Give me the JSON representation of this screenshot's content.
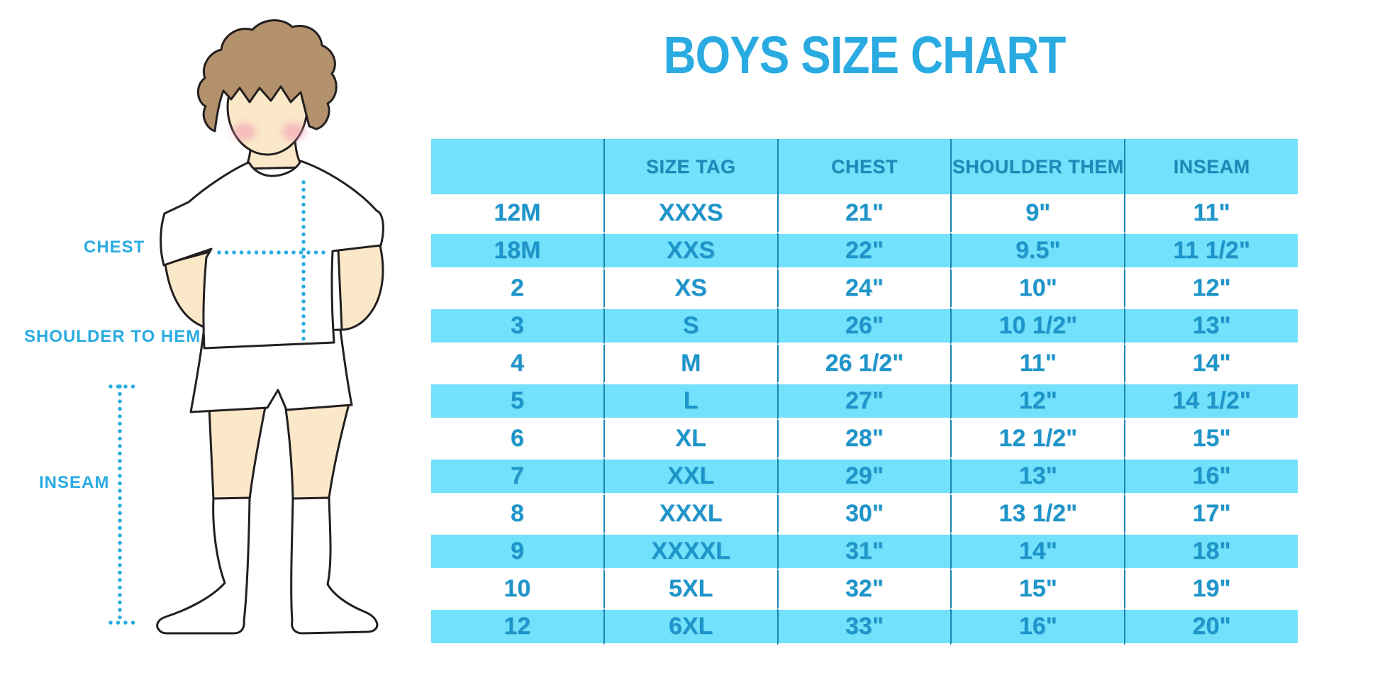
{
  "title": "BOYS SIZE CHART",
  "figure": {
    "chest_label": "CHEST",
    "shoulder_to_hem_label": "SHOULDER TO HEM",
    "inseam_label": "INSEAM"
  },
  "table": {
    "headers": [
      "",
      "SIZE TAG",
      "CHEST",
      "SHOULDER THEM",
      "INSEAM"
    ],
    "rows": [
      [
        "12M",
        "XXXS",
        "21\"",
        "9\"",
        "11\""
      ],
      [
        "18M",
        "XXS",
        "22\"",
        "9.5\"",
        "11 1/2\""
      ],
      [
        "2",
        "XS",
        "24\"",
        "10\"",
        "12\""
      ],
      [
        "3",
        "S",
        "26\"",
        "10 1/2\"",
        "13\""
      ],
      [
        "4",
        "M",
        "26 1/2\"",
        "11\"",
        "14\""
      ],
      [
        "5",
        "L",
        "27\"",
        "12\"",
        "14 1/2\""
      ],
      [
        "6",
        "XL",
        "28\"",
        "12 1/2\"",
        "15\""
      ],
      [
        "7",
        "XXL",
        "29\"",
        "13\"",
        "16\""
      ],
      [
        "8",
        "XXXL",
        "30\"",
        "13 1/2\"",
        "17\""
      ],
      [
        "9",
        "XXXXL",
        "31\"",
        "14\"",
        "18\""
      ],
      [
        "10",
        "5XL",
        "32\"",
        "15\"",
        "19\""
      ],
      [
        "12",
        "6XL",
        "33\"",
        "16\"",
        "20\""
      ]
    ]
  },
  "colors": {
    "accent_blue": "#29abe2",
    "row_cyan": "#72e1fb",
    "table_text": "#1d95ca",
    "header_text": "#1e89b8",
    "column_border": "#1a85b0",
    "skin": "#fae8c8",
    "hair": "#b3916c",
    "outline": "#231f20",
    "cheek_pink": "#f08fae"
  }
}
